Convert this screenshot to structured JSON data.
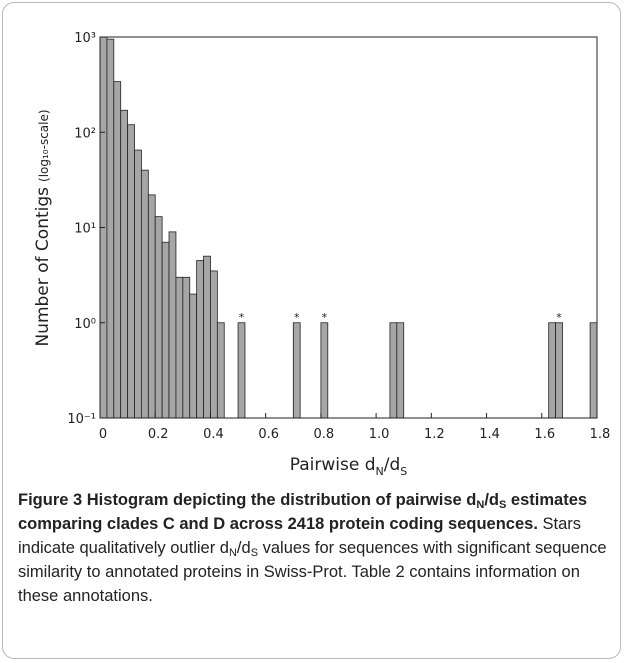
{
  "chart_data": {
    "type": "histogram",
    "x_label_parts": [
      "Pairwise d",
      "N",
      "/d",
      "S"
    ],
    "y_label": "Number of Contigs",
    "y_label_note": "(log₁₀-scale)",
    "bins": [
      0,
      0.025,
      0.05,
      0.075,
      0.1,
      0.125,
      0.15,
      0.175,
      0.2,
      0.225,
      0.25,
      0.275,
      0.3,
      0.325,
      0.35,
      0.375,
      0.4,
      0.425,
      0.45,
      0.475,
      0.5,
      0.525,
      0.55,
      0.575,
      0.6,
      0.625,
      0.65,
      0.675,
      0.7,
      0.725,
      0.75,
      0.775,
      0.8,
      0.825,
      0.85,
      0.875,
      0.9,
      0.925,
      0.95,
      0.975,
      1,
      1.025,
      1.05,
      1.075,
      1.1,
      1.125,
      1.15,
      1.175,
      1.2,
      1.225,
      1.25,
      1.275,
      1.3,
      1.325,
      1.35,
      1.375,
      1.4,
      1.425,
      1.45,
      1.475,
      1.5,
      1.525,
      1.55,
      1.575,
      1.6,
      1.625,
      1.65,
      1.675,
      1.7,
      1.725,
      1.75,
      1.775,
      1.8
    ],
    "values": [
      1000,
      950,
      340,
      170,
      120,
      65,
      40,
      22,
      13,
      7,
      9,
      3,
      3,
      2,
      4.5,
      5,
      3.5,
      1,
      0,
      0,
      1,
      0,
      0,
      0,
      0,
      0,
      0,
      0,
      1,
      0,
      0,
      0,
      1,
      0,
      0,
      0,
      0,
      0,
      0,
      0,
      0,
      0,
      1,
      1,
      0,
      0,
      0,
      0,
      0,
      0,
      0,
      0,
      0,
      0,
      0,
      0,
      0,
      0,
      0,
      0,
      0,
      0,
      0,
      0,
      0,
      1,
      1,
      0,
      0,
      0,
      0,
      1
    ],
    "color": "#a6a6a6",
    "stars": [
      {
        "label": "*",
        "x": 0.5125,
        "y": 1
      },
      {
        "label": "*",
        "x": 0.7125,
        "y": 1
      },
      {
        "label": "*",
        "x": 0.8125,
        "y": 1
      },
      {
        "label": "*",
        "x": 1.6625,
        "y": 1
      }
    ],
    "xlim": [
      0,
      1.8
    ],
    "xticks": [
      0,
      0.2,
      0.4,
      0.6,
      0.8,
      {
        "value": 1,
        "label": "1.0"
      },
      1.2,
      1.4,
      1.6,
      1.8
    ],
    "ylim": [
      0.1,
      1000
    ],
    "yticks": [
      {
        "value": 0.1,
        "label": "10⁻¹"
      },
      {
        "value": 1,
        "label": "10⁰"
      },
      {
        "value": 10,
        "label": "10¹"
      },
      {
        "value": 100,
        "label": "10²"
      },
      {
        "value": 1000,
        "label": "10³"
      }
    ],
    "log_y": true
  },
  "caption": {
    "bold_parts": [
      "Figure 3 Histogram depicting the distribution of pairwise d",
      "N",
      "/d",
      "S",
      " estimates comparing clades C and D across 2418 protein coding sequences."
    ],
    "text_parts": [
      " Stars indicate qualitatively outlier d",
      "N",
      "/d",
      "S",
      " values for sequences with significant sequence similarity to annotated proteins in Swiss-Prot. Table 2 contains information on these annotations."
    ]
  }
}
